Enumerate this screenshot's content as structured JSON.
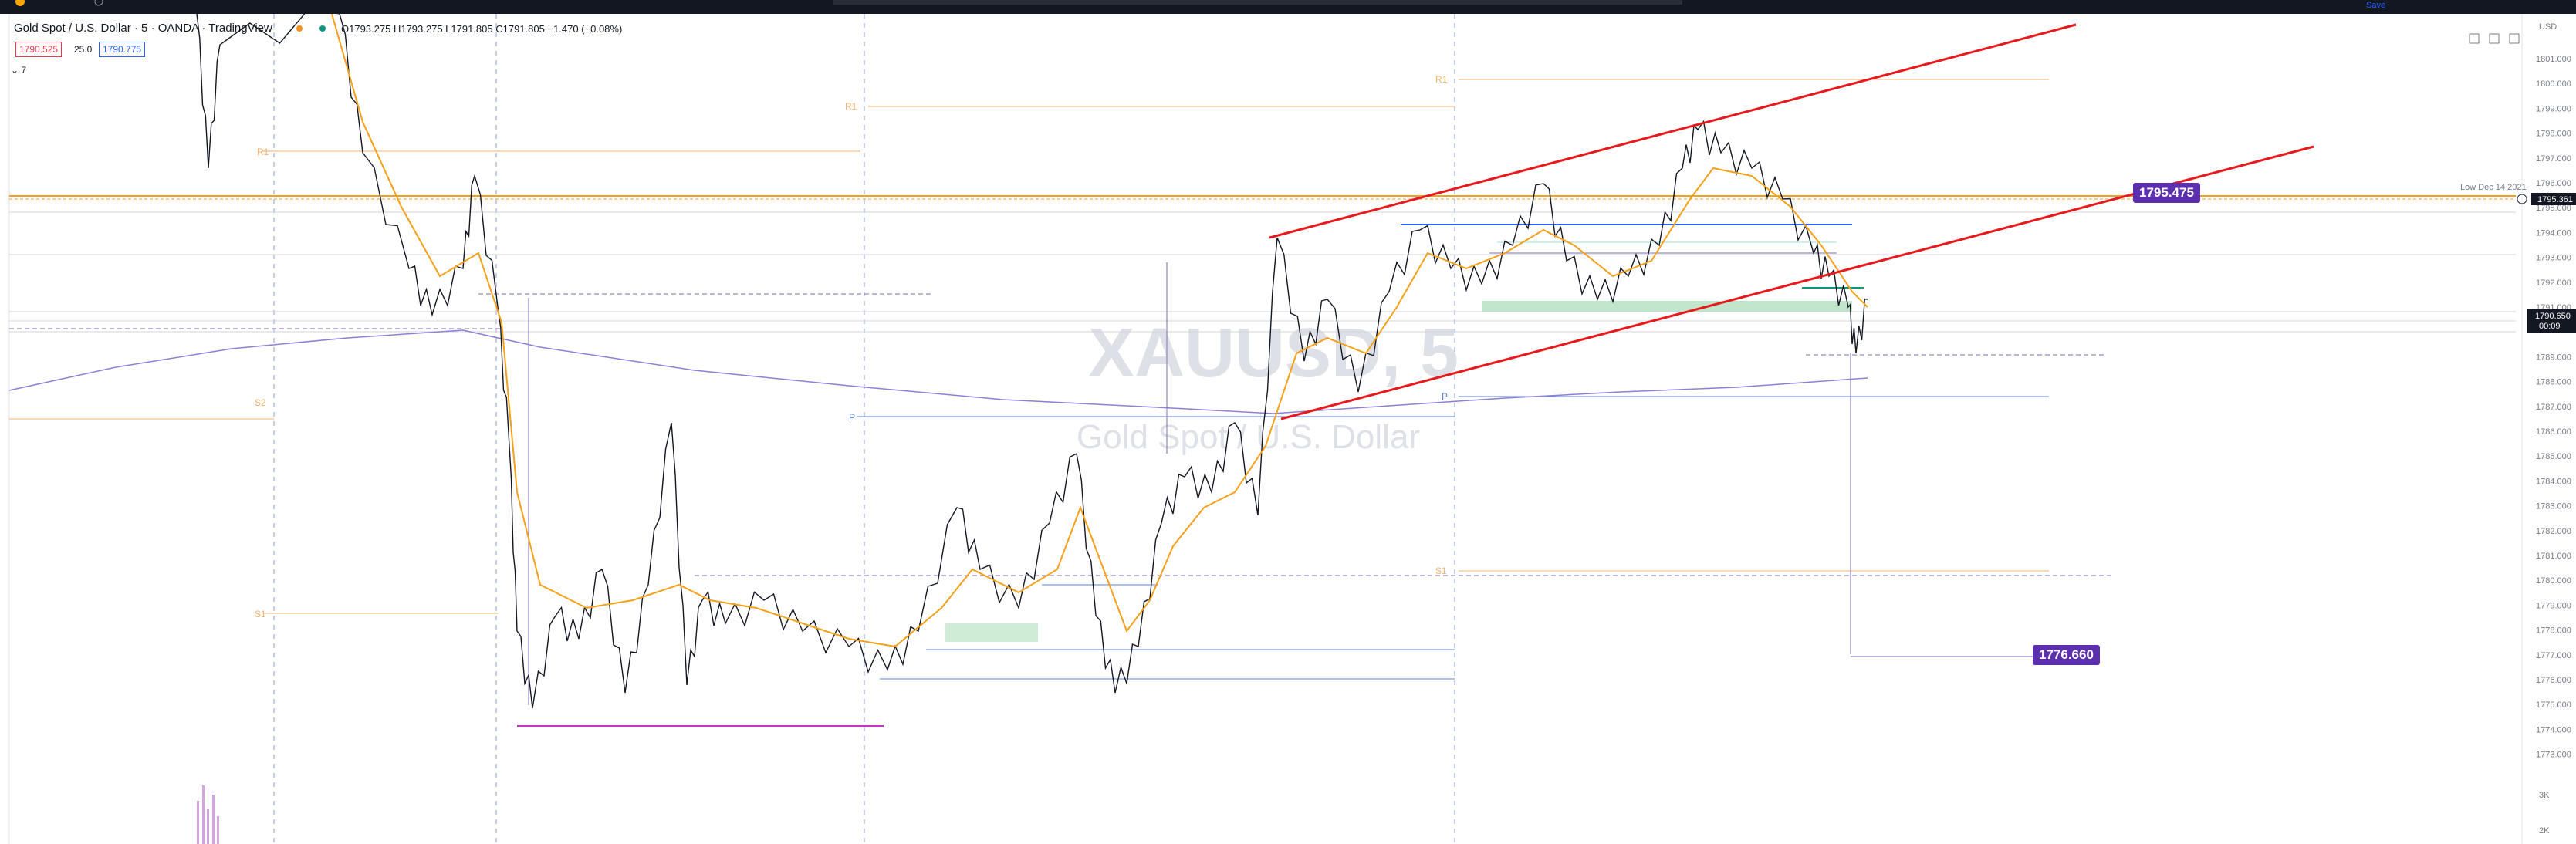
{
  "legend": {
    "title": "Gold Spot / U.S. Dollar · 5 · OANDA · TradingView",
    "ohlc": "O1793.275  H1793.275  L1791.805  C1791.805  −1.470 (−0.08%)",
    "bid": "1790.525",
    "spread": "25.0",
    "ask": "1790.775",
    "indicator_count": "7"
  },
  "toolbar": {
    "save_label": "Save"
  },
  "watermark": {
    "symbol": "XAUUSD, 5",
    "name": "Gold Spot / U.S. Dollar"
  },
  "price_axis": {
    "currency": "USD",
    "ticks": [
      "1801.000",
      "1800.000",
      "1799.000",
      "1798.000",
      "1797.000",
      "1796.000",
      "1795.000",
      "1794.000",
      "1793.000",
      "1792.000",
      "1791.000",
      "1789.000",
      "1788.000",
      "1787.000",
      "1786.000",
      "1785.000",
      "1784.000",
      "1783.000",
      "1782.000",
      "1781.000",
      "1780.000",
      "1779.000",
      "1778.000",
      "1777.000",
      "1776.000",
      "1775.000",
      "1774.000",
      "1773.000"
    ],
    "last_price": "1790.650",
    "countdown": "00:09",
    "line_price": "1795.361",
    "line_note": "Low Dec 14 2021",
    "volume_ticks": [
      "3K",
      "2K"
    ]
  },
  "labels": {
    "target_upper": "1795.475",
    "target_lower": "1776.660"
  },
  "pivots": {
    "r1": "R1",
    "p": "P",
    "s1": "S1",
    "s2": "S2"
  },
  "colors": {
    "channel": "#e8191a",
    "ema": "#f4a019",
    "sma": "#8d7fd6",
    "label_bg": "#5b2fad",
    "pivot": "#f6b26b",
    "bid": "#f23645",
    "ask": "#2962ff"
  }
}
